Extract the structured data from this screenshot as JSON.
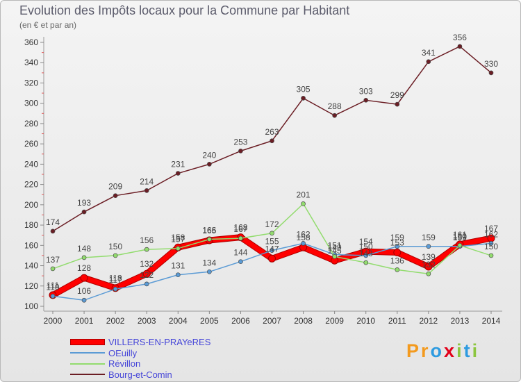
{
  "chart_data": {
    "type": "line",
    "title": "Evolution des Impôts locaux pour la Commune par Habitant",
    "subtitle": "(en € et par an)",
    "xlabel": "",
    "ylabel": "",
    "categories": [
      "2000",
      "2001",
      "2002",
      "2003",
      "2004",
      "2005",
      "2006",
      "2007",
      "2008",
      "2009",
      "2010",
      "2011",
      "2012",
      "2013",
      "2014"
    ],
    "ylim": [
      100,
      360
    ],
    "yticks": [
      100,
      120,
      140,
      160,
      180,
      200,
      220,
      240,
      260,
      280,
      300,
      320,
      340,
      360
    ],
    "grid": false,
    "legend": "bottom-left",
    "series": [
      {
        "name": "VILLERS-EN-PRAYeRES",
        "color": "#ff0000",
        "values": [
          111,
          128,
          118,
          132,
          158,
          165,
          168,
          147,
          158,
          145,
          154,
          153,
          139,
          161,
          167
        ]
      },
      {
        "name": "OEuilly",
        "color": "#5b9bd5",
        "values": [
          110,
          106,
          117,
          122,
          131,
          134,
          144,
          155,
          162,
          151,
          150,
          159,
          159,
          159,
          162
        ]
      },
      {
        "name": "Révillon",
        "color": "#92dc6e",
        "values": [
          137,
          148,
          150,
          156,
          157,
          166,
          167,
          172,
          201,
          149,
          143,
          136,
          132,
          160,
          150
        ]
      },
      {
        "name": "Bourg-et-Comin",
        "color": "#6b1d24",
        "values": [
          174,
          193,
          209,
          214,
          231,
          240,
          253,
          263,
          305,
          288,
          303,
          299,
          341,
          356,
          330
        ]
      }
    ]
  },
  "logo": {
    "letters": [
      "P",
      "r",
      "o",
      "x",
      "i",
      "t",
      "i"
    ],
    "colors": [
      "#f39a1e",
      "#f39a1e",
      "#2e9be0",
      "#e2001a",
      "#8cc63f",
      "#2e9be0",
      "#8cc63f"
    ]
  }
}
